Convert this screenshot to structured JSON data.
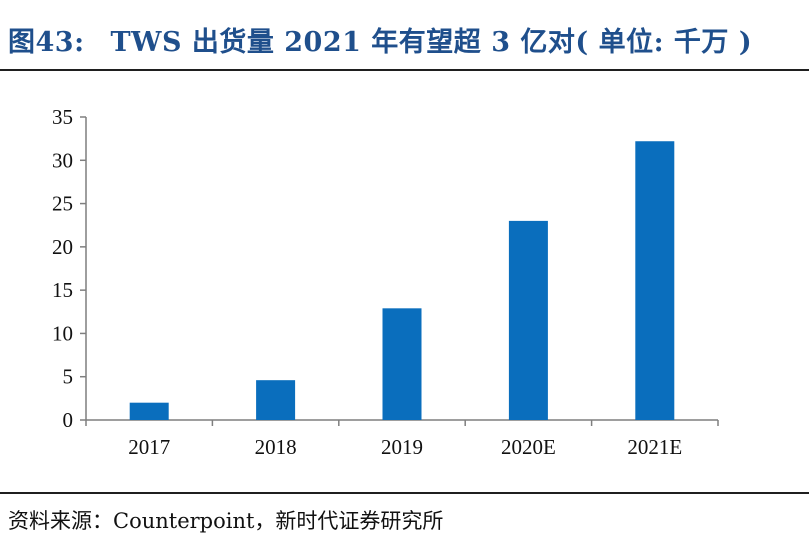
{
  "header": {
    "figure_label": "图43:",
    "title": "TWS 出货量 2021 年有望超 3 亿对( 单位: 千万 )"
  },
  "footer": {
    "source": "资料来源：Counterpoint，新时代证券研究所"
  },
  "colors": {
    "bar": "#0a6ebd",
    "title": "#1f4f8c",
    "axis": "#7f7f7f"
  },
  "chart_data": {
    "type": "bar",
    "title": "TWS 出货量 2021 年有望超 3 亿对( 单位: 千万 )",
    "xlabel": "",
    "ylabel": "",
    "categories": [
      "2017",
      "2018",
      "2019",
      "2020E",
      "2021E"
    ],
    "values": [
      2.0,
      4.6,
      12.9,
      23.0,
      32.2
    ],
    "ylim": [
      0,
      35
    ],
    "yticks": [
      0,
      5,
      10,
      15,
      20,
      25,
      30,
      35
    ],
    "grid": false,
    "legend": "none"
  }
}
